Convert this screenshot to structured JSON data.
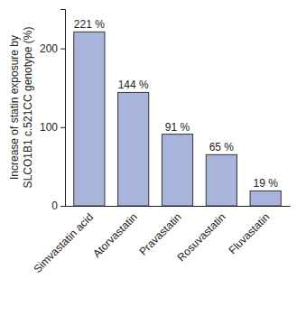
{
  "chart_data": {
    "type": "bar",
    "y_label": [
      "Increase of statin exposure by",
      "SLCO1B1 c.521CC genotype (%)"
    ],
    "categories": [
      "Simvastatin acid",
      "Atorvastatin",
      "Pravastatin",
      "Rosuvastatin",
      "Fluvastatin"
    ],
    "values": [
      221,
      144,
      91,
      65,
      19
    ],
    "value_labels": [
      "221 %",
      "144 %",
      "91 %",
      "65 %",
      "19 %"
    ],
    "data_labels": true,
    "color": "#a9b4dc",
    "ylim": [
      0,
      250
    ],
    "yticks": [
      0,
      100,
      200
    ],
    "grid": false
  }
}
